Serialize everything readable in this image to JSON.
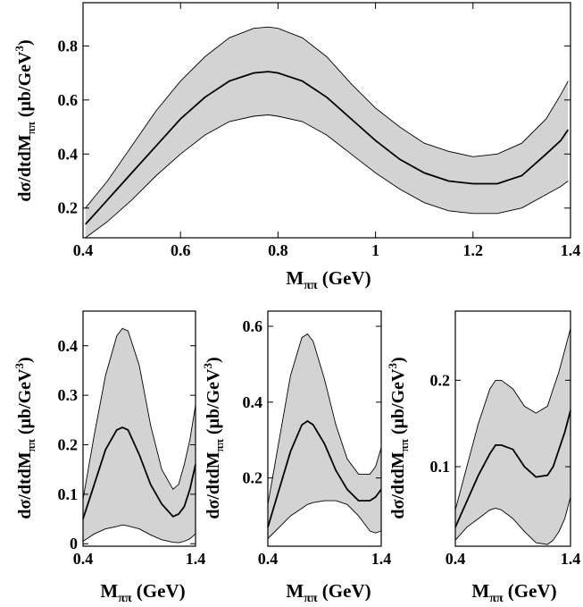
{
  "chart_data": [
    {
      "type": "area",
      "xlabel": "M_ππ (GeV)",
      "ylabel": "dσ/dtdM_ππ (μb/GeV³)",
      "xlim": [
        0.4,
        1.4
      ],
      "ylim": [
        0.09,
        0.96
      ],
      "x_ticks": [
        0.4,
        0.6,
        0.8,
        1,
        1.2,
        1.4
      ],
      "x_tick_labels": [
        "0.4",
        "0.6",
        "0.8",
        "1",
        "1.2",
        "1.4"
      ],
      "y_ticks": [
        0.2,
        0.4,
        0.6,
        0.8
      ],
      "y_tick_labels": [
        "0.2",
        "0.4",
        "0.6",
        "0.8"
      ],
      "grid": false,
      "fill_color": "#d3d3d3",
      "x": [
        0.405,
        0.45,
        0.5,
        0.55,
        0.6,
        0.65,
        0.7,
        0.75,
        0.78,
        0.8,
        0.85,
        0.9,
        0.95,
        1.0,
        1.05,
        1.1,
        1.15,
        1.2,
        1.25,
        1.3,
        1.35,
        1.38,
        1.395
      ],
      "central": [
        0.14,
        0.23,
        0.33,
        0.43,
        0.53,
        0.61,
        0.67,
        0.7,
        0.705,
        0.7,
        0.67,
        0.61,
        0.53,
        0.45,
        0.38,
        0.33,
        0.3,
        0.29,
        0.29,
        0.32,
        0.4,
        0.45,
        0.49
      ],
      "upper": [
        0.2,
        0.3,
        0.43,
        0.56,
        0.67,
        0.76,
        0.83,
        0.865,
        0.87,
        0.865,
        0.83,
        0.76,
        0.66,
        0.57,
        0.5,
        0.44,
        0.41,
        0.39,
        0.4,
        0.44,
        0.53,
        0.62,
        0.67
      ],
      "lower": [
        0.09,
        0.15,
        0.23,
        0.32,
        0.4,
        0.47,
        0.52,
        0.54,
        0.545,
        0.54,
        0.52,
        0.47,
        0.4,
        0.33,
        0.27,
        0.22,
        0.19,
        0.18,
        0.18,
        0.2,
        0.25,
        0.28,
        0.3
      ]
    },
    {
      "type": "area",
      "xlabel": "M_ππ (GeV)",
      "ylabel": "dσ/dtdM_ππ (μb/GeV³)",
      "xlim": [
        0.4,
        1.4
      ],
      "ylim": [
        -0.005,
        0.47
      ],
      "x_ticks": [
        0.4,
        1.4
      ],
      "x_tick_labels": [
        "0.4",
        "1.4"
      ],
      "y_ticks": [
        0,
        0.1,
        0.2,
        0.3,
        0.4
      ],
      "y_tick_labels": [
        "0",
        "0.1",
        "0.2",
        "0.3",
        "0.4"
      ],
      "grid": false,
      "fill_color": "#d3d3d3",
      "x": [
        0.4,
        0.5,
        0.6,
        0.7,
        0.75,
        0.8,
        0.9,
        1.0,
        1.1,
        1.2,
        1.25,
        1.3,
        1.35,
        1.4
      ],
      "central": [
        0.05,
        0.12,
        0.19,
        0.23,
        0.235,
        0.23,
        0.18,
        0.12,
        0.08,
        0.055,
        0.06,
        0.075,
        0.11,
        0.16
      ],
      "upper": [
        0.09,
        0.22,
        0.34,
        0.42,
        0.435,
        0.43,
        0.36,
        0.24,
        0.15,
        0.11,
        0.12,
        0.16,
        0.21,
        0.28
      ],
      "lower": [
        0.005,
        0.02,
        0.03,
        0.035,
        0.038,
        0.036,
        0.03,
        0.018,
        0.008,
        0.003,
        0.002,
        0.005,
        0.01,
        0.02
      ]
    },
    {
      "type": "area",
      "xlabel": "M_ππ (GeV)",
      "ylabel": "dσ/dtdM_ππ (μb/GeV³)",
      "xlim": [
        0.4,
        1.4
      ],
      "ylim": [
        0.02,
        0.64
      ],
      "x_ticks": [
        0.4,
        1.4
      ],
      "x_tick_labels": [
        "0.4",
        "1.4"
      ],
      "y_ticks": [
        0.2,
        0.4,
        0.6
      ],
      "y_tick_labels": [
        "0.2",
        "0.4",
        "0.6"
      ],
      "grid": false,
      "fill_color": "#d3d3d3",
      "x": [
        0.4,
        0.5,
        0.6,
        0.7,
        0.75,
        0.8,
        0.9,
        1.0,
        1.1,
        1.2,
        1.25,
        1.3,
        1.35,
        1.4
      ],
      "central": [
        0.07,
        0.17,
        0.27,
        0.34,
        0.35,
        0.34,
        0.29,
        0.22,
        0.17,
        0.14,
        0.14,
        0.14,
        0.15,
        0.17
      ],
      "upper": [
        0.13,
        0.3,
        0.47,
        0.57,
        0.58,
        0.56,
        0.46,
        0.34,
        0.25,
        0.21,
        0.21,
        0.21,
        0.23,
        0.28
      ],
      "lower": [
        0.04,
        0.07,
        0.1,
        0.12,
        0.13,
        0.135,
        0.14,
        0.14,
        0.13,
        0.1,
        0.08,
        0.06,
        0.055,
        0.06
      ]
    },
    {
      "type": "area",
      "xlabel": "M_ππ (GeV)",
      "ylabel": "dσ/dtdM_ππ (μb/GeV³)",
      "xlim": [
        0.4,
        1.4
      ],
      "ylim": [
        0.008,
        0.28
      ],
      "x_ticks": [
        0.4,
        1.4
      ],
      "x_tick_labels": [
        "0.4",
        "1.4"
      ],
      "y_ticks": [
        0.1,
        0.2
      ],
      "y_tick_labels": [
        "0.1",
        "0.2"
      ],
      "grid": false,
      "fill_color": "#d3d3d3",
      "x": [
        0.4,
        0.5,
        0.6,
        0.7,
        0.75,
        0.8,
        0.9,
        1.0,
        1.1,
        1.2,
        1.25,
        1.3,
        1.35,
        1.4
      ],
      "central": [
        0.03,
        0.06,
        0.09,
        0.115,
        0.125,
        0.125,
        0.12,
        0.1,
        0.088,
        0.09,
        0.1,
        0.12,
        0.14,
        0.165
      ],
      "upper": [
        0.05,
        0.1,
        0.15,
        0.19,
        0.2,
        0.2,
        0.19,
        0.17,
        0.162,
        0.17,
        0.19,
        0.21,
        0.235,
        0.26
      ],
      "lower": [
        0.015,
        0.03,
        0.04,
        0.05,
        0.052,
        0.05,
        0.04,
        0.025,
        0.012,
        0.01,
        0.015,
        0.025,
        0.04,
        0.065
      ]
    }
  ]
}
